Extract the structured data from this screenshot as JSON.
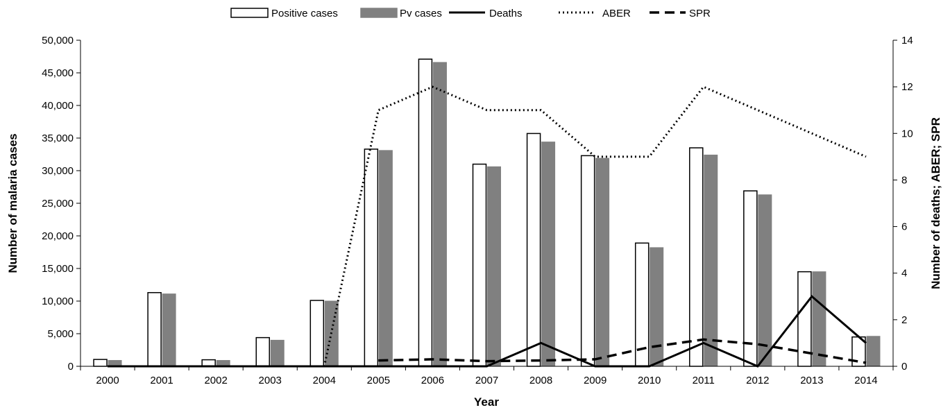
{
  "chart_data": {
    "type": "bar",
    "title": "",
    "xlabel": "Year",
    "ylabel": "Number of malaria cases",
    "y2label": "Number of deaths; ABER; SPR",
    "categories": [
      "2000",
      "2001",
      "2002",
      "2003",
      "2004",
      "2005",
      "2006",
      "2007",
      "2008",
      "2009",
      "2010",
      "2011",
      "2012",
      "2013",
      "2014"
    ],
    "ylim": [
      0,
      50000
    ],
    "y_ticks": [
      "0",
      "5,000",
      "10,000",
      "15,000",
      "20,000",
      "25,000",
      "30,000",
      "35,000",
      "40,000",
      "45,000",
      "50,000"
    ],
    "y2lim": [
      0,
      14
    ],
    "y2_ticks": [
      "0",
      "2",
      "4",
      "6",
      "8",
      "10",
      "12",
      "14"
    ],
    "legend_position": "top",
    "bar_series": [
      {
        "name": "Positive cases",
        "color": "#ffffff",
        "stroke": "#000000",
        "values": [
          1050,
          11300,
          1000,
          4400,
          10100,
          33300,
          47100,
          31000,
          35700,
          32300,
          18900,
          33500,
          26900,
          14500,
          4500
        ]
      },
      {
        "name": "Pv cases",
        "color": "#808080",
        "stroke": "#808080",
        "values": [
          900,
          11100,
          900,
          4000,
          10000,
          33100,
          46600,
          30600,
          34400,
          31900,
          18200,
          32400,
          26300,
          14500,
          4600
        ]
      }
    ],
    "line_series": [
      {
        "name": "Deaths",
        "style": "solid",
        "color": "#000000",
        "values": [
          0,
          0,
          0,
          0,
          0,
          0,
          0,
          0,
          1,
          0,
          0,
          1,
          0,
          3,
          1
        ]
      },
      {
        "name": "ABER",
        "style": "dotted",
        "color": "#000000",
        "values": [
          0,
          0,
          0,
          0,
          0,
          11,
          12,
          11,
          11,
          9,
          9,
          12,
          11,
          10,
          9
        ]
      },
      {
        "name": "SPR",
        "style": "dashed",
        "color": "#000000",
        "values": [
          null,
          null,
          null,
          null,
          null,
          0.25,
          0.3,
          0.22,
          0.25,
          0.3,
          0.82,
          1.15,
          0.95,
          0.55,
          0.15
        ]
      }
    ]
  }
}
